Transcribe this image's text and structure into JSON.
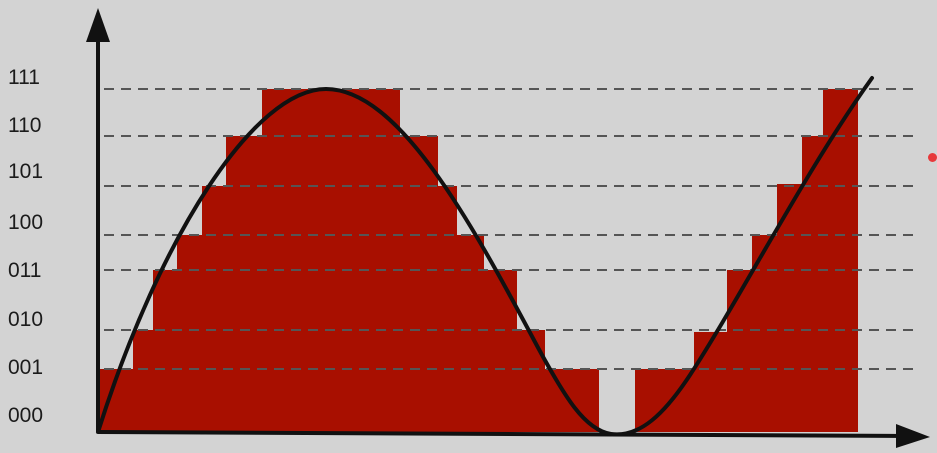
{
  "diagram": {
    "y_levels": [
      "111",
      "110",
      "101",
      "100",
      "011",
      "010",
      "001",
      "000"
    ],
    "colors": {
      "quantized_fill": "#a80f00",
      "analog_signal": "#111111",
      "axes": "#111111",
      "grid": "#555555",
      "background": "#d3d3d3",
      "accent_dot": "#e7383a"
    }
  }
}
